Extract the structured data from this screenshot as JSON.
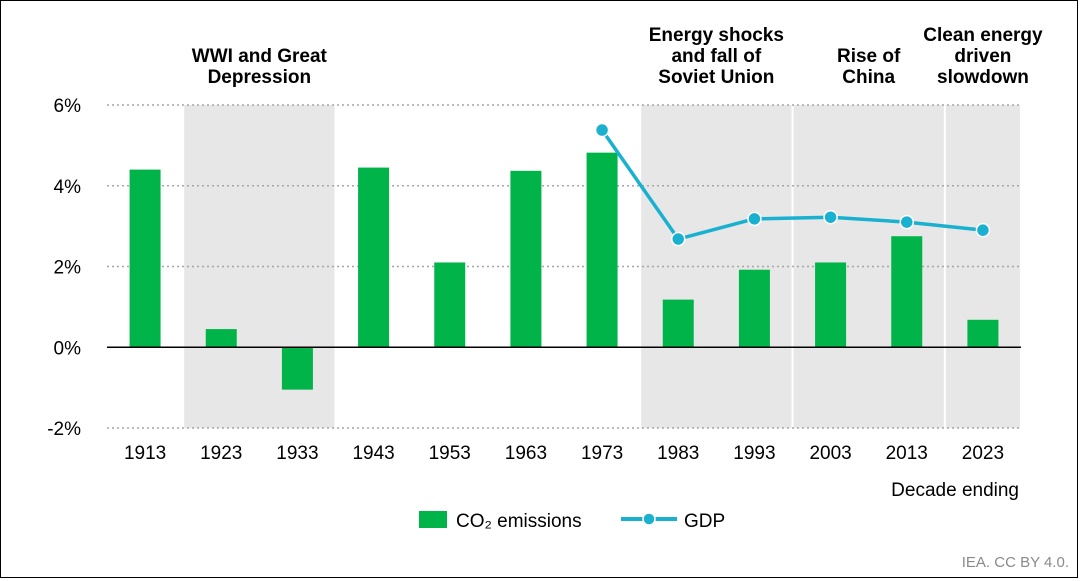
{
  "chart_data": {
    "type": "bar",
    "title": "",
    "xlabel": "Decade ending",
    "ylabel": "",
    "ylim": [
      -2,
      6
    ],
    "yticks": [
      -2,
      0,
      2,
      4,
      6
    ],
    "ytick_labels": [
      "-2%",
      "0%",
      "2%",
      "4%",
      "6%"
    ],
    "grid": true,
    "categories": [
      "1913",
      "1923",
      "1933",
      "1943",
      "1953",
      "1963",
      "1973",
      "1983",
      "1993",
      "2003",
      "2013",
      "2023"
    ],
    "series": [
      {
        "name": "CO₂ emissions",
        "type": "bar",
        "color": "#00b44a",
        "values": [
          4.4,
          0.45,
          -1.05,
          4.45,
          2.1,
          4.37,
          4.82,
          1.18,
          1.92,
          2.1,
          2.75,
          0.68
        ]
      },
      {
        "name": "GDP",
        "type": "line",
        "color": "#1ab0d0",
        "values": [
          null,
          null,
          null,
          null,
          null,
          null,
          5.38,
          2.68,
          3.18,
          3.22,
          3.1,
          2.9
        ]
      }
    ],
    "shaded_periods": [
      {
        "label": "WWI and Great Depression",
        "lines": [
          "WWI and Great",
          "Depression"
        ],
        "from": "1923",
        "to": "1933"
      },
      {
        "label": "Energy shocks and fall of Soviet Union",
        "lines": [
          "Energy shocks",
          "and fall of",
          "Soviet Union"
        ],
        "from": "1983",
        "to": "1993"
      },
      {
        "label": "Rise of China",
        "lines": [
          "Rise of",
          "China"
        ],
        "from": "2003",
        "to": "2013"
      },
      {
        "label": "Clean energy driven slowdown",
        "lines": [
          "Clean energy",
          "driven",
          "slowdown"
        ],
        "from": "2023",
        "to": "2023"
      }
    ],
    "legend": {
      "position": "bottom"
    },
    "source": "IEA. CC BY 4.0.",
    "colors": {
      "shade": "#e7e7e7",
      "grid": "#a6a6a6",
      "axis": "#000000"
    }
  }
}
